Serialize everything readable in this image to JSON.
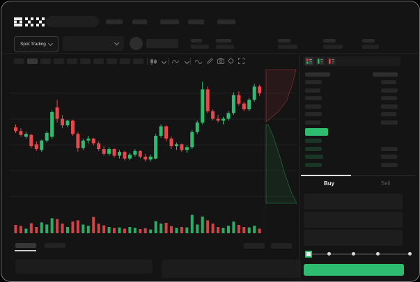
{
  "header": {
    "logo": "OKX"
  },
  "market_selector": {
    "label": "Spot Trading"
  },
  "trade_form": {
    "buy_tab": "Buy",
    "sell_tab": "Sell",
    "inputs": 3,
    "slider": {
      "stops": 5,
      "value_index": 0
    },
    "submit_button": {
      "color": "#2ebd70",
      "label": ""
    }
  },
  "colors": {
    "green": "#2ebd70",
    "red": "#e5484d",
    "window_bg": "#141414",
    "panel_bg": "#1d1d1d",
    "active_tab_underline": "#e0e0e0"
  },
  "orderbook": {
    "layout_icons": [
      "book-both-icon",
      "book-bids-icon",
      "book-asks-icon"
    ],
    "header": {
      "left_w": 36,
      "right_w": 36
    },
    "asks": [
      {
        "l": 24,
        "r": 22
      },
      {
        "l": 22,
        "r": 24
      },
      {
        "l": 24,
        "r": 23
      },
      {
        "l": 23,
        "r": 24
      },
      {
        "l": 24,
        "r": 22
      },
      {
        "l": 22,
        "r": 24
      }
    ],
    "last_price_bar": {
      "w": 33,
      "color": "#2ebd70"
    },
    "bids": [
      {
        "l": 24,
        "r": 0
      },
      {
        "l": 24,
        "r": 24
      },
      {
        "l": 26,
        "r": 23
      },
      {
        "l": 24,
        "r": 24
      }
    ]
  },
  "chart_data": [
    {
      "type": "candlestick",
      "title": "",
      "xlabel": "",
      "ylabel": "",
      "note": "No axis tick labels visible; OHLC values are relative estimates on a 0-100 scale read from candle pixel positions.",
      "grid": true,
      "ohlc": [
        [
          45,
          48,
          39,
          41
        ],
        [
          41,
          44,
          35,
          37
        ],
        [
          35,
          40,
          33,
          38
        ],
        [
          37,
          38,
          23,
          25
        ],
        [
          27,
          30,
          20,
          22
        ],
        [
          21,
          32,
          19,
          31
        ],
        [
          31,
          41,
          29,
          39
        ],
        [
          35,
          63,
          33,
          61
        ],
        [
          66,
          74,
          50,
          54
        ],
        [
          54,
          58,
          44,
          47
        ],
        [
          47,
          53,
          45,
          52
        ],
        [
          52,
          53,
          36,
          38
        ],
        [
          38,
          40,
          19,
          23
        ],
        [
          23,
          33,
          21,
          31
        ],
        [
          31,
          36,
          28,
          33
        ],
        [
          33,
          34,
          26,
          28
        ],
        [
          28,
          30,
          20,
          22
        ],
        [
          22,
          25,
          15,
          17
        ],
        [
          17,
          24,
          15,
          22
        ],
        [
          22,
          23,
          13,
          15
        ],
        [
          15,
          21,
          12,
          19
        ],
        [
          19,
          20,
          10,
          12
        ],
        [
          12,
          18,
          10,
          16
        ],
        [
          16,
          22,
          14,
          20
        ],
        [
          20,
          21,
          12,
          14
        ],
        [
          14,
          17,
          9,
          11
        ],
        [
          11,
          16,
          9,
          14
        ],
        [
          12,
          38,
          11,
          36
        ],
        [
          36,
          48,
          34,
          46
        ],
        [
          46,
          47,
          30,
          33
        ],
        [
          33,
          35,
          22,
          25
        ],
        [
          25,
          29,
          21,
          27
        ],
        [
          27,
          28,
          19,
          21
        ],
        [
          21,
          26,
          18,
          24
        ],
        [
          24,
          42,
          22,
          40
        ],
        [
          40,
          52,
          38,
          50
        ],
        [
          50,
          93,
          48,
          85
        ],
        [
          85,
          88,
          60,
          62
        ],
        [
          62,
          64,
          52,
          54
        ],
        [
          54,
          58,
          50,
          52
        ],
        [
          52,
          56,
          48,
          54
        ],
        [
          54,
          62,
          52,
          60
        ],
        [
          60,
          82,
          58,
          79
        ],
        [
          79,
          83,
          68,
          70
        ],
        [
          70,
          72,
          62,
          64
        ],
        [
          64,
          76,
          62,
          74
        ],
        [
          74,
          91,
          72,
          88
        ],
        [
          88,
          90,
          78,
          81
        ]
      ],
      "volume": [
        40,
        35,
        22,
        48,
        30,
        52,
        42,
        72,
        68,
        46,
        30,
        56,
        62,
        42,
        36,
        78,
        46,
        38,
        30,
        26,
        28,
        22,
        30,
        26,
        20,
        24,
        18,
        58,
        46,
        50,
        34,
        26,
        30,
        28,
        88,
        42,
        80,
        62,
        46,
        30,
        26,
        36,
        56,
        40,
        30,
        28,
        36,
        22
      ]
    },
    {
      "type": "area",
      "title": "market-depth-sideways",
      "note": "Vertical depth shading between chart and order book; point coords are page pixels.",
      "asks_polygon": [
        [
          380,
          98
        ],
        [
          423,
          98
        ],
        [
          420,
          110
        ],
        [
          417,
          122
        ],
        [
          413,
          132
        ],
        [
          410,
          142
        ],
        [
          404,
          150
        ],
        [
          398,
          158
        ],
        [
          391,
          164
        ],
        [
          385,
          169
        ],
        [
          380,
          173
        ]
      ],
      "bids_polygon": [
        [
          380,
          177
        ],
        [
          383,
          177
        ],
        [
          387,
          186
        ],
        [
          391,
          196
        ],
        [
          395,
          208
        ],
        [
          399,
          220
        ],
        [
          403,
          234
        ],
        [
          407,
          248
        ],
        [
          412,
          262
        ],
        [
          417,
          276
        ],
        [
          424,
          290
        ],
        [
          380,
          290
        ]
      ]
    }
  ]
}
